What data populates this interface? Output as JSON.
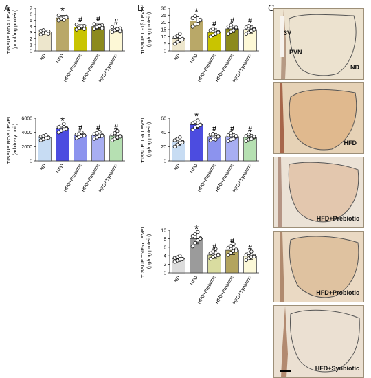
{
  "panel_labels": {
    "a": "A",
    "b": "B",
    "c": "C"
  },
  "groups": [
    "ND",
    "HFD",
    "HFD+Prebiotic",
    "HFD+Probiotic",
    "HFD+Synbiotic"
  ],
  "chart_data": [
    {
      "id": "mda",
      "type": "bar",
      "ylabel": "TISSUE MDA LEVEL",
      "ylabel2": "(μmol/mg protein)",
      "categories": [
        "ND",
        "HFD",
        "HFD+Prebiotic",
        "HFD+Probiotic",
        "HFD+Synbiotic"
      ],
      "values": [
        3.1,
        5.4,
        3.9,
        4.0,
        3.5
      ],
      "errors": [
        0.3,
        0.4,
        0.4,
        0.4,
        0.4
      ],
      "points": [
        [
          2.7,
          2.9,
          3.0,
          3.2,
          3.3,
          3.4,
          3.0,
          2.8
        ],
        [
          5.0,
          5.2,
          5.4,
          5.6,
          5.8,
          5.3,
          5.1,
          5.5
        ],
        [
          3.5,
          3.7,
          3.9,
          4.1,
          4.3,
          3.8,
          4.0,
          3.6
        ],
        [
          3.6,
          3.8,
          4.0,
          4.2,
          4.4,
          3.9,
          4.1,
          3.7
        ],
        [
          3.1,
          3.3,
          3.5,
          3.7,
          3.9,
          3.4,
          3.6,
          3.2
        ]
      ],
      "ylim": [
        0,
        7
      ],
      "ticks": [
        0,
        1,
        2,
        3,
        4,
        5,
        6,
        7
      ],
      "colors": [
        "#ede6cc",
        "#b9a868",
        "#c9c400",
        "#8c8a1e",
        "#fdf8d6"
      ],
      "markers": [
        "",
        "*",
        "#",
        "#",
        "#"
      ]
    },
    {
      "id": "il1b",
      "type": "bar",
      "ylabel": "TISSUE IL-1β LEVEL",
      "ylabel2": "(pg/mg protein)",
      "categories": [
        "ND",
        "HFD",
        "HFD+Prebiotic",
        "HFD+Probiotic",
        "HFD+Synbiotic"
      ],
      "values": [
        8.5,
        21,
        13,
        15.5,
        15
      ],
      "errors": [
        2.5,
        3.0,
        2.5,
        2.5,
        2.5
      ],
      "points": [
        [
          5,
          6.5,
          7.5,
          8.5,
          9.5,
          10.5,
          12,
          8
        ],
        [
          17,
          18.5,
          20,
          21.5,
          23,
          24.5,
          19,
          22
        ],
        [
          10,
          11,
          12.5,
          13.5,
          14.5,
          15.5,
          12,
          13
        ],
        [
          12,
          13.5,
          15,
          16,
          17,
          18,
          14.5,
          16.5
        ],
        [
          12,
          13,
          14.5,
          15.5,
          16.5,
          17.5,
          14,
          15
        ]
      ],
      "ylim": [
        0,
        30
      ],
      "ticks": [
        0,
        5,
        10,
        15,
        20,
        25,
        30
      ],
      "colors": [
        "#ede6cc",
        "#b9a868",
        "#c9c400",
        "#8c8a1e",
        "#fdf8d6"
      ],
      "markers": [
        "",
        "*",
        "#",
        "#",
        "#"
      ]
    },
    {
      "id": "ros",
      "type": "bar",
      "ylabel": "TISSUE ROS LEVEL",
      "ylabel2": "(arbitrary unit)",
      "categories": [
        "ND",
        "HFD",
        "HFD+Prebiotic",
        "HFD+Probiotic",
        "HFD+Synbiotic"
      ],
      "values": [
        3300,
        4600,
        3600,
        3600,
        3500
      ],
      "errors": [
        250,
        400,
        300,
        350,
        450
      ],
      "points": [
        [
          2900,
          3050,
          3200,
          3300,
          3400,
          3500,
          3600,
          3250
        ],
        [
          4000,
          4250,
          4450,
          4600,
          4750,
          4950,
          5200,
          4500
        ],
        [
          3200,
          3350,
          3500,
          3600,
          3700,
          3850,
          4000,
          3550
        ],
        [
          3100,
          3300,
          3450,
          3600,
          3750,
          3900,
          4100,
          3500
        ],
        [
          2900,
          3100,
          3300,
          3500,
          3700,
          3900,
          4200,
          3400
        ]
      ],
      "ylim": [
        0,
        6000
      ],
      "ticks": [
        0,
        2000,
        4000,
        6000
      ],
      "colors": [
        "#c7dcf3",
        "#4c4ce0",
        "#8c93ee",
        "#a8aef2",
        "#b6e0b2"
      ],
      "markers": [
        "",
        "*",
        "#",
        "#",
        "#"
      ]
    },
    {
      "id": "il6",
      "type": "bar",
      "ylabel": "TISSUE IL-6 LEVEL",
      "ylabel2": "(pg/mg protein)",
      "categories": [
        "ND",
        "HFD",
        "HFD+Prebiotic",
        "HFD+Probiotic",
        "HFD+Synbiotic"
      ],
      "values": [
        27,
        51,
        34,
        34,
        33
      ],
      "errors": [
        5,
        5,
        4,
        4,
        4
      ],
      "points": [
        [
          20,
          23,
          25,
          27,
          29,
          31,
          33,
          26
        ],
        [
          44,
          47,
          49,
          51,
          53,
          55,
          57,
          50
        ],
        [
          29,
          31,
          33,
          35,
          37,
          38,
          30,
          34
        ],
        [
          28,
          30,
          32,
          34,
          36,
          39,
          31,
          35
        ],
        [
          28,
          30,
          32,
          33,
          35,
          37,
          31,
          34
        ]
      ],
      "ylim": [
        0,
        60
      ],
      "ticks": [
        0,
        20,
        40,
        60
      ],
      "colors": [
        "#c7dcf3",
        "#4c4ce0",
        "#8c93ee",
        "#a8aef2",
        "#b6e0b2"
      ],
      "markers": [
        "",
        "*",
        "#",
        "#",
        "#"
      ]
    },
    {
      "id": "tnfa",
      "type": "bar",
      "ylabel": "TISSUE TNF-α LEVEL",
      "ylabel2": "(pg/mg protein)",
      "categories": [
        "ND",
        "HFD",
        "HFD+Prebiotic",
        "HFD+Probiotic",
        "HFD+Synbiotic"
      ],
      "values": [
        3.3,
        8.0,
        4.2,
        5.3,
        3.9
      ],
      "errors": [
        0.6,
        1.2,
        0.8,
        1.0,
        0.8
      ],
      "points": [
        [
          2.6,
          2.9,
          3.1,
          3.3,
          3.5,
          3.7,
          4.0,
          3.2
        ],
        [
          6.2,
          7.0,
          7.6,
          8.1,
          8.6,
          9.1,
          9.6,
          8.0
        ],
        [
          3.3,
          3.7,
          4.0,
          4.3,
          4.6,
          5.0,
          5.6,
          4.1
        ],
        [
          4.2,
          4.7,
          5.1,
          5.5,
          5.9,
          6.3,
          6.8,
          5.2
        ],
        [
          3.0,
          3.4,
          3.7,
          4.0,
          4.3,
          4.6,
          5.0,
          3.8
        ]
      ],
      "ylim": [
        0,
        10
      ],
      "ticks": [
        0,
        2,
        4,
        6,
        8,
        10
      ],
      "colors": [
        "#dcdcdc",
        "#9b9b9b",
        "#d9dca0",
        "#b3a45e",
        "#fbf8d8"
      ],
      "markers": [
        "",
        "*",
        "#",
        "#",
        "#"
      ]
    }
  ],
  "histology": {
    "labels": [
      "3V",
      "PVN",
      "ND",
      "HFD",
      "HFD+Prebiotic",
      "HFD+Probiotic",
      "HFD+Synbiotic"
    ]
  }
}
